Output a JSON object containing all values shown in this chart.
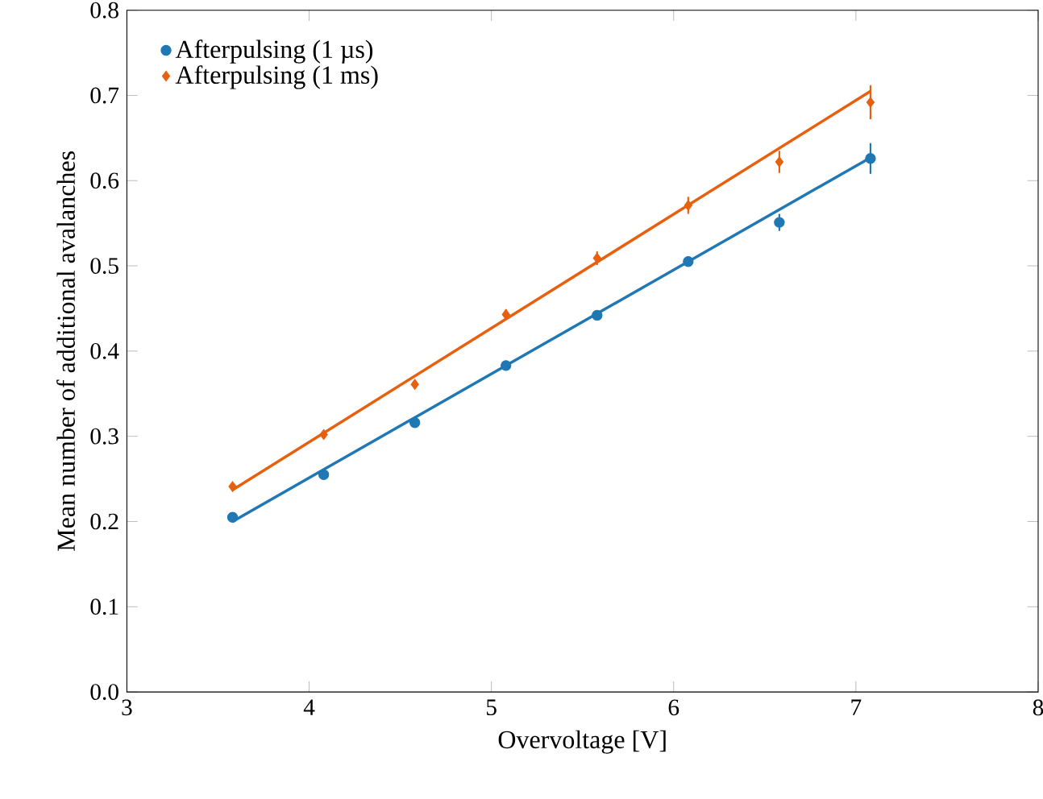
{
  "chart_data": {
    "type": "scatter",
    "xlabel": "Overvoltage [V]",
    "ylabel": "Mean number of additional avalanches",
    "xlim": [
      3,
      8
    ],
    "ylim": [
      0,
      0.8
    ],
    "xticks": [
      3,
      4,
      5,
      6,
      7,
      8
    ],
    "yticks": [
      {
        "value": 0,
        "label": "0.0"
      },
      0.1,
      0.2,
      0.3,
      0.4,
      0.5,
      0.6,
      0.7,
      0.8
    ],
    "legend": "top left",
    "grid": false,
    "series": [
      {
        "name": "Afterpulsing (1 µs)",
        "color": "#1f77b4",
        "marker": "circle",
        "x": [
          3.58,
          4.08,
          4.58,
          5.08,
          5.58,
          6.08,
          6.58,
          7.08
        ],
        "values": [
          0.205,
          0.255,
          0.316,
          0.383,
          0.442,
          0.505,
          0.551,
          0.626
        ],
        "errors": [
          0.004,
          0.004,
          0.004,
          0.004,
          0.004,
          0.005,
          0.01,
          0.018
        ]
      },
      {
        "name": "Afterpulsing (1 ms)",
        "color": "#e6600e",
        "marker": "diamond",
        "x": [
          3.58,
          4.08,
          4.58,
          5.08,
          5.58,
          6.08,
          6.58,
          7.08
        ],
        "values": [
          0.241,
          0.302,
          0.361,
          0.443,
          0.509,
          0.571,
          0.622,
          0.692
        ],
        "errors": [
          0.004,
          0.004,
          0.005,
          0.006,
          0.008,
          0.01,
          0.013,
          0.02
        ]
      },
      {
        "type": "line",
        "color": "#1f77b4",
        "marker": "none",
        "x": [
          3.58,
          7.08
        ],
        "values": [
          0.2,
          0.627
        ]
      },
      {
        "type": "line",
        "color": "#e6600e",
        "marker": "none",
        "x": [
          3.58,
          7.08
        ],
        "values": [
          0.237,
          0.705
        ]
      }
    ]
  }
}
